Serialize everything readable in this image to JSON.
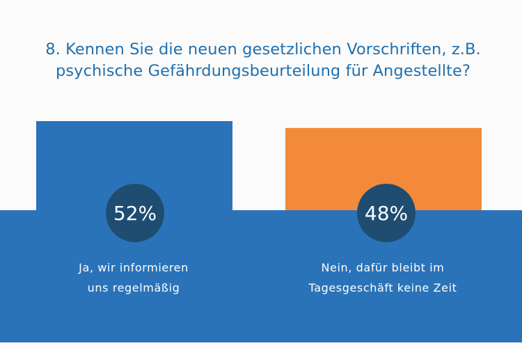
{
  "chart_data": {
    "type": "bar",
    "title_lines": [
      "8. Kennen Sie die neuen gesetzlichen Vorschriften, z.B.",
      "psychische Gefährdungsbeurteilung für Angestellte?"
    ],
    "unit": "%",
    "categories": [
      [
        "Ja, wir informieren",
        "uns regelmäßig"
      ],
      [
        "Nein, dafür bleibt im",
        "Tagesgeschäft keine Zeit"
      ]
    ],
    "values": [
      52,
      48
    ],
    "value_labels": [
      "52%",
      "48%"
    ],
    "colors": [
      "#2a73b8",
      "#f28a3a"
    ],
    "band_color": "#2a73b8",
    "circle_color": "#1f4d72",
    "ylim": [
      0,
      52
    ]
  }
}
